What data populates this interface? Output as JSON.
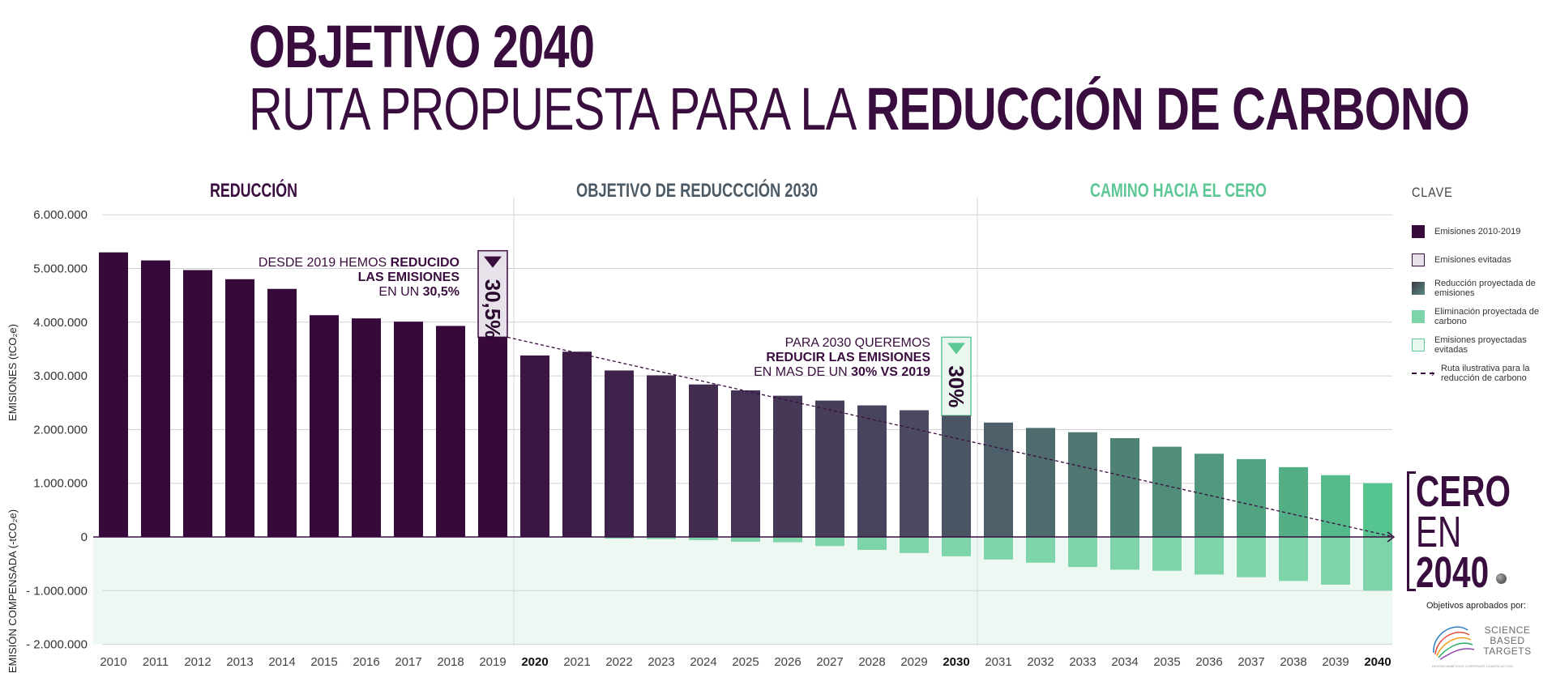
{
  "title": {
    "line1": "OBJETIVO 2040",
    "line2_light": "RUTA PROPUESTA PARA LA ",
    "line2_bold": "REDUCCIÓN DE CARBONO"
  },
  "sections": [
    {
      "label": "REDUCCIÓN",
      "color": "#3a0d3f"
    },
    {
      "label": "OBJETIVO DE REDUCCCIÓN 2030",
      "color": "#4c5a66"
    },
    {
      "label": "CAMINO HACIA EL CERO",
      "color": "#5ec796"
    }
  ],
  "y_axis_top_label": "EMISIONES (tCO₂e)",
  "y_axis_bottom_label": "EMISIÓN COMPENSADA  (-tCO₂e)",
  "annotation_2019": {
    "line1_light": "DESDE 2019 HEMOS",
    "line1_bold": "REDUCIDO",
    "line2_bold": "LAS EMISIONES",
    "line3_light": "EN UN",
    "line3_bold": "30,5%",
    "badge": "30,5%"
  },
  "annotation_2030": {
    "line1_light": "PARA 2030 QUEREMOS",
    "line2_bold": "REDUCIR LAS EMISIONES",
    "line3_light": "EN MAS DE UN",
    "line3_bold": "30% VS 2019",
    "badge": "30%"
  },
  "legend": {
    "title": "CLAVE",
    "items": [
      {
        "label": "Emisiones 2010-2019",
        "color": "#36093a",
        "style": "fill"
      },
      {
        "label": "Emisiones evitadas",
        "color": "#e7e2ea",
        "border": "#3a0d3f",
        "style": "fill"
      },
      {
        "label": "Reducción proyectada de emisiones",
        "color": "#4a5a63",
        "style": "gradient"
      },
      {
        "label": "Eliminación proyectada  de carbono",
        "color": "#7dd4a8",
        "style": "fill"
      },
      {
        "label": "Emisiones proyectadas evitadas",
        "color": "#e9f7ef",
        "border": "#5ec796",
        "style": "fill"
      },
      {
        "label": "Ruta ilustrativa para la reducción de carbono",
        "style": "dashed"
      }
    ]
  },
  "cero": {
    "line1": "CERO",
    "line2": "EN",
    "line3": "2040"
  },
  "approved_by": "Objetivos aprobados por:",
  "sbt": {
    "line1": "SCIENCE",
    "line2": "BASED",
    "line3": "TARGETS",
    "tagline": "DRIVING AMBITIOUS CORPORATE CLIMATE ACTION"
  },
  "chart_data": {
    "type": "bar",
    "categories": [
      "2010",
      "2011",
      "2012",
      "2013",
      "2014",
      "2015",
      "2016",
      "2017",
      "2018",
      "2019",
      "2020",
      "2021",
      "2022",
      "2023",
      "2024",
      "2025",
      "2026",
      "2027",
      "2028",
      "2029",
      "2030",
      "2031",
      "2032",
      "2033",
      "2034",
      "2035",
      "2036",
      "2037",
      "2038",
      "2039",
      "2040"
    ],
    "bold_categories": [
      "2020",
      "2030",
      "2040"
    ],
    "series": [
      {
        "name": "Emisiones 2010-2019",
        "values": [
          5300000,
          5150000,
          4970000,
          4800000,
          4620000,
          4130000,
          4070000,
          4010000,
          3930000,
          3720000,
          3380000,
          3450000,
          3100000,
          3010000,
          2840000,
          2730000,
          2630000,
          2540000,
          2450000,
          2360000,
          2260000,
          2130000,
          2030000,
          1950000,
          1840000,
          1680000,
          1550000,
          1450000,
          1300000,
          1150000,
          1000000
        ]
      },
      {
        "name": "Eliminación proyectada  de carbono",
        "values": [
          0,
          0,
          0,
          0,
          0,
          0,
          0,
          0,
          0,
          0,
          0,
          0,
          -30000,
          -40000,
          -60000,
          -90000,
          -100000,
          -170000,
          -240000,
          -300000,
          -360000,
          -420000,
          -480000,
          -560000,
          -610000,
          -630000,
          -700000,
          -750000,
          -820000,
          -890000,
          -1000000
        ]
      }
    ],
    "avoided_2019_top": 5330000,
    "avoided_2030_top": 3720000,
    "y_ticks": [
      "6.000.000",
      "5.000.000",
      "4.000.000",
      "3.000.000",
      "2.000.000",
      "1.000.000",
      "0",
      "- 1.000.000",
      "- 2.000.000"
    ],
    "ylim": [
      -2000000,
      6000000
    ],
    "trend_line": {
      "from": [
        "2019",
        3720000
      ],
      "to": [
        "2040",
        0
      ]
    }
  }
}
